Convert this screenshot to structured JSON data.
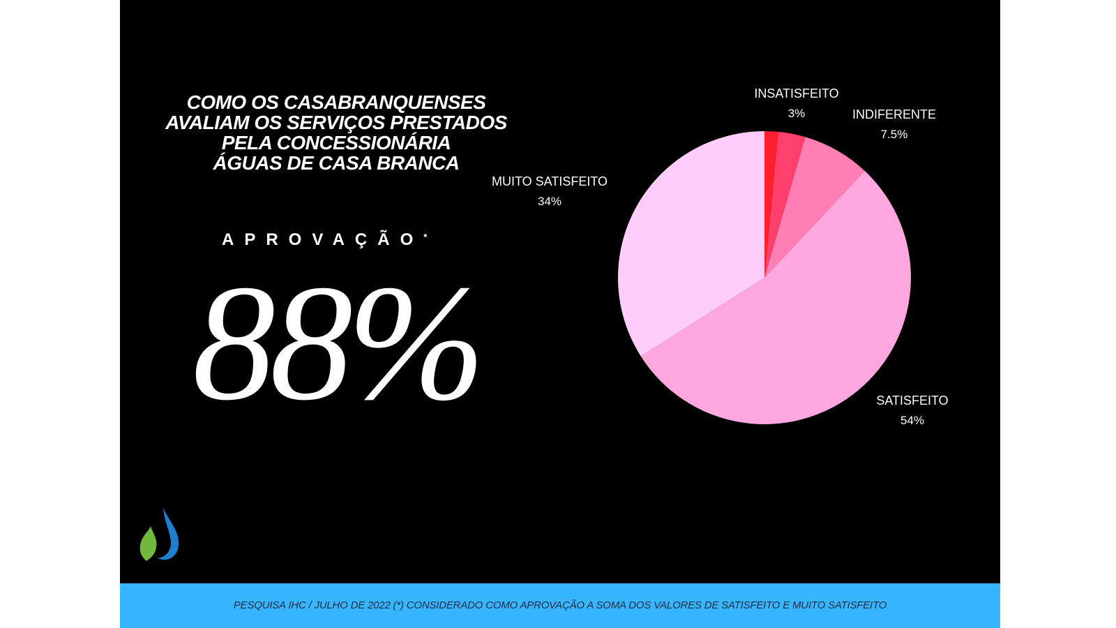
{
  "title_lines": [
    "COMO OS CASABRANQUENSES",
    "AVALIAM OS SERVIÇOS PRESTADOS",
    "PELA CONCESSIONÁRIA",
    "ÁGUAS DE CASA BRANCA"
  ],
  "approval": {
    "label": "APROVAÇÃO",
    "asterisk": "*",
    "value": "88%"
  },
  "footer": {
    "text": "PESQUISA IHC / JULHO DE 2022  (*) CONSIDERADO COMO APROVAÇÃO A SOMA DOS VALORES DE SATISFEITO E MUITO SATISFEITO"
  },
  "colors": {
    "background": "#000000",
    "footer_bar": "#37b6ff",
    "text": "#ffffff"
  },
  "chart_data": {
    "type": "pie",
    "slices": [
      {
        "label": "",
        "value": 1.5,
        "percent_label": "",
        "color": "#ff1f2d"
      },
      {
        "label": "INSATISFEITO",
        "value": 3,
        "percent_label": "3%",
        "color": "#ff3f6c"
      },
      {
        "label": "INDIFERENTE",
        "value": 7.5,
        "percent_label": "7.5%",
        "color": "#ff7fb4"
      },
      {
        "label": "SATISFEITO",
        "value": 54,
        "percent_label": "54%",
        "color": "#ffa7de"
      },
      {
        "label": "MUITO SATISFEITO",
        "value": 34,
        "percent_label": "34%",
        "color": "#ffcdfc"
      }
    ]
  }
}
